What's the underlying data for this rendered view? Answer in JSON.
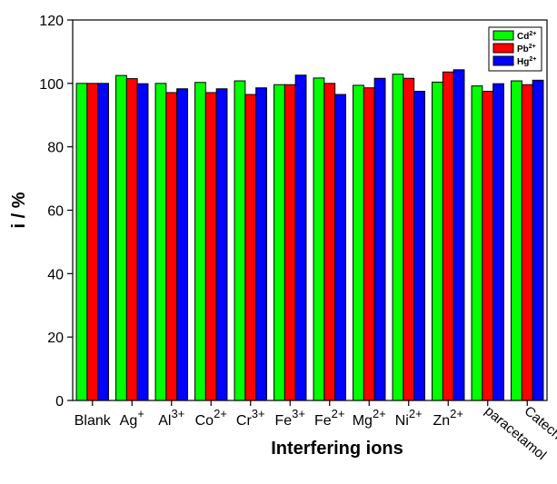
{
  "chart_data": {
    "type": "bar",
    "xlabel": "Interfering ions",
    "ylabel": "i / %",
    "ylim": [
      0,
      120
    ],
    "yticks": [
      0,
      20,
      40,
      60,
      80,
      100,
      120
    ],
    "grid": false,
    "legend_position": "top-right",
    "categories": [
      {
        "base": "Blank",
        "sup": ""
      },
      {
        "base": "Ag",
        "sup": "+"
      },
      {
        "base": "Al",
        "sup": "3+"
      },
      {
        "base": "Co",
        "sup": "2+"
      },
      {
        "base": "Cr",
        "sup": "3+"
      },
      {
        "base": "Fe",
        "sup": "3+"
      },
      {
        "base": "Fe",
        "sup": "2+"
      },
      {
        "base": "Mg",
        "sup": "2+"
      },
      {
        "base": "Ni",
        "sup": "2+"
      },
      {
        "base": "Zn",
        "sup": "2+"
      },
      {
        "base": "paracetamol",
        "sup": "",
        "rotated": true
      },
      {
        "base": "Catechol",
        "sup": "",
        "rotated": true
      }
    ],
    "series": [
      {
        "name": "Cd",
        "name_sup": "2+",
        "color": "#00ff00",
        "values": [
          100.0,
          102.5,
          100.0,
          100.3,
          100.8,
          99.6,
          101.7,
          99.4,
          102.9,
          100.4,
          99.2,
          100.8
        ]
      },
      {
        "name": "Pb",
        "name_sup": "2+",
        "color": "#ff0000",
        "values": [
          100.0,
          101.5,
          97.1,
          97.1,
          96.5,
          99.6,
          100.0,
          98.6,
          101.6,
          103.6,
          97.5,
          99.6
        ]
      },
      {
        "name": "Hg",
        "name_sup": "2+",
        "color": "#0000ff",
        "values": [
          100.0,
          99.9,
          98.3,
          98.3,
          98.6,
          102.6,
          96.5,
          101.6,
          97.5,
          104.3,
          99.9,
          101.0
        ]
      }
    ]
  }
}
